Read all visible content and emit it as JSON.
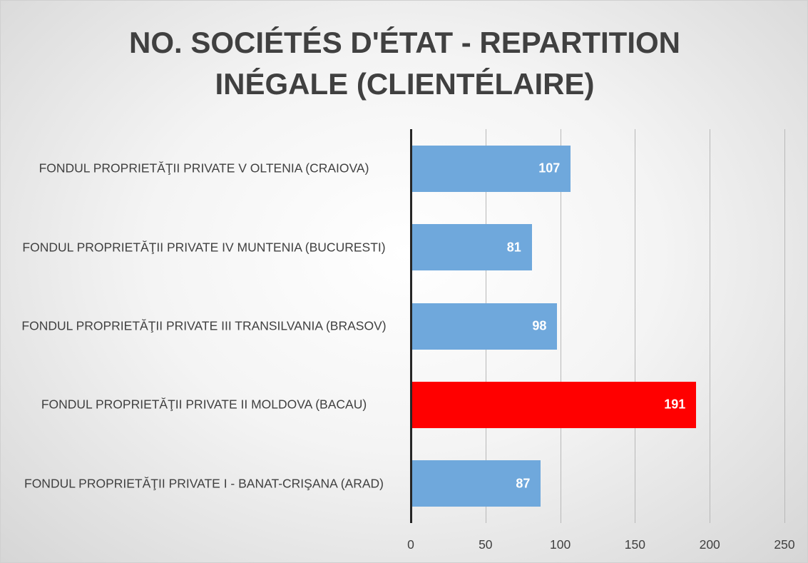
{
  "chart_data": {
    "type": "barh",
    "title": "NO. SOCIÉTÉS D'ÉTAT - REPARTITION INÉGALE (CLIENTÉLAIRE)",
    "categories": [
      "FONDUL PROPRIETĂŢII PRIVATE V OLTENIA (CRAIOVA)",
      "FONDUL PROPRIETĂŢII PRIVATE IV MUNTENIA (BUCURESTI)",
      "FONDUL PROPRIETĂŢII PRIVATE III TRANSILVANIA (BRASOV)",
      "FONDUL PROPRIETĂŢII PRIVATE II MOLDOVA (BACAU)",
      "FONDUL PROPRIETĂŢII PRIVATE I - BANAT-CRIŞANA (ARAD)"
    ],
    "values": [
      107,
      81,
      98,
      191,
      87
    ],
    "colors": [
      "#6fa8dc",
      "#6fa8dc",
      "#6fa8dc",
      "#ff0000",
      "#6fa8dc"
    ],
    "xlim": [
      0,
      250
    ],
    "xticks": [
      0,
      50,
      100,
      150,
      200,
      250
    ],
    "grid": true
  }
}
